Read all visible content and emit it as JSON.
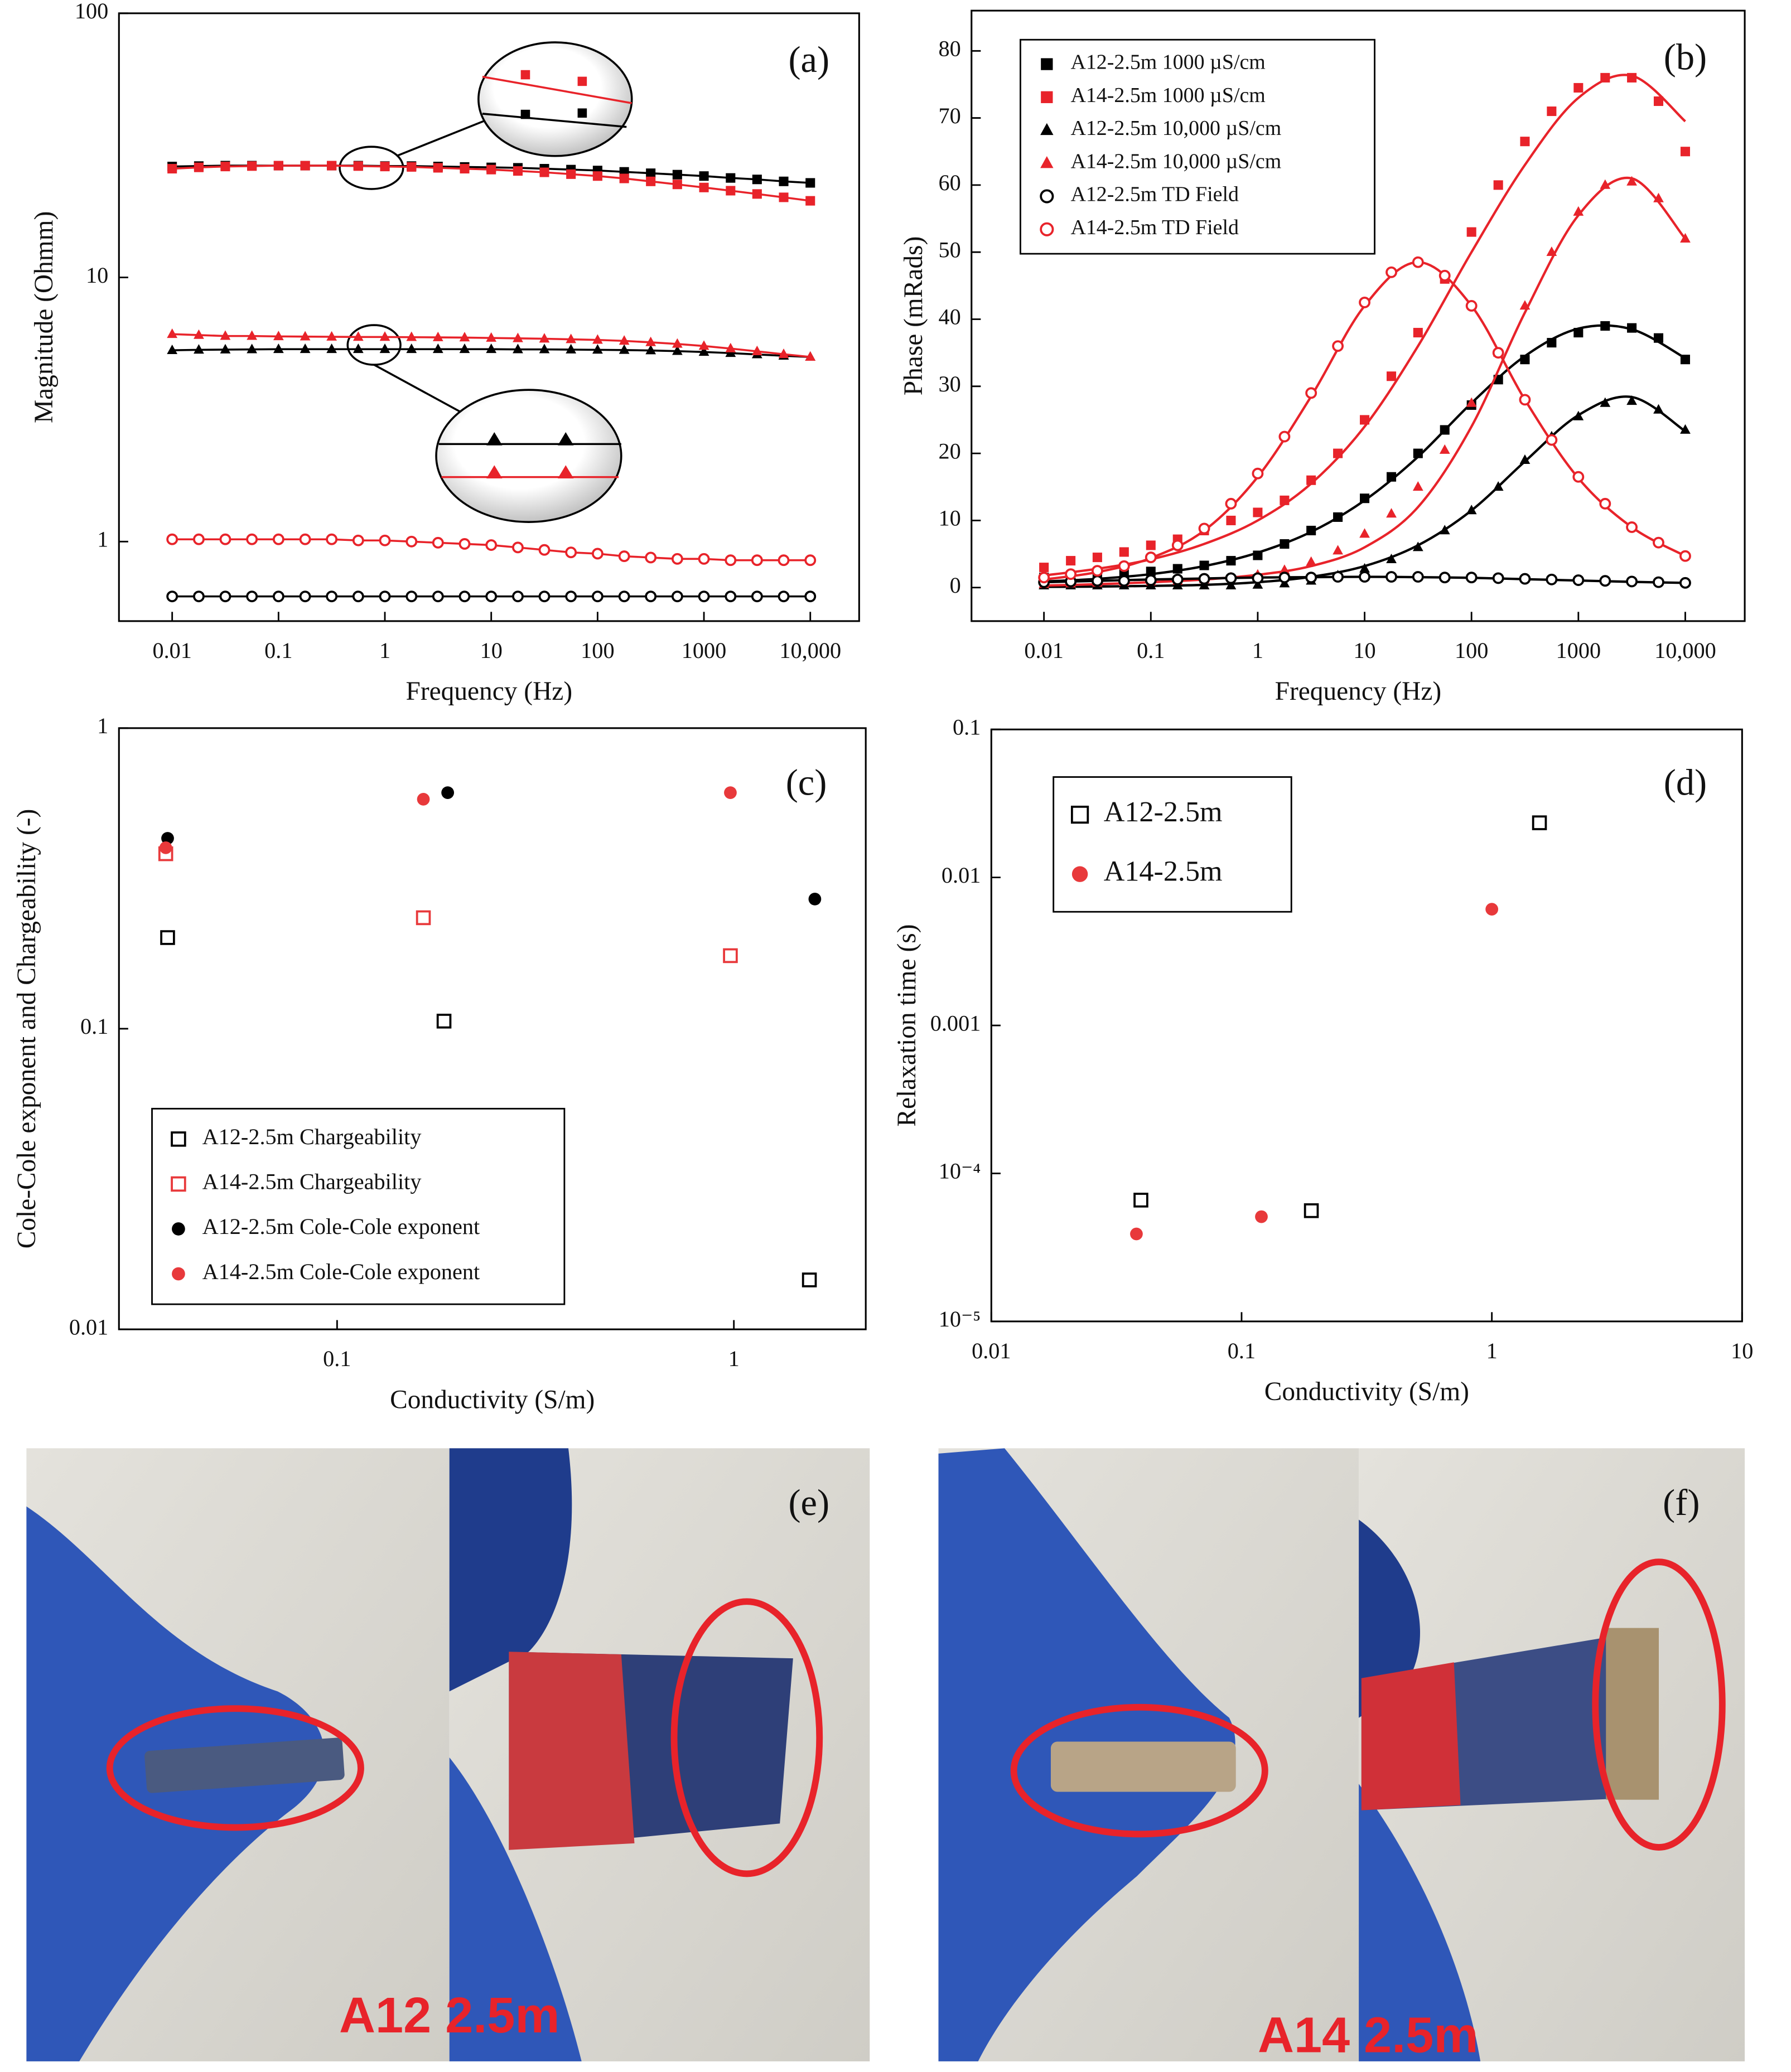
{
  "chart_data": [
    {
      "type": "scatter",
      "panel": "(a)",
      "xlabel": "Frequency (Hz)",
      "ylabel": "Magnitude (Ohmm)",
      "xlog": true,
      "ylog": true,
      "xlim": [
        0.00316,
        28800
      ],
      "ylim": [
        0.5,
        100
      ],
      "xticks": [
        0.01,
        0.1,
        1,
        10,
        100,
        1000,
        {
          "value": 10000,
          "label": "10,000"
        }
      ],
      "yticks": [
        1,
        10,
        100
      ],
      "x": [
        0.01,
        0.0178,
        0.0316,
        0.0562,
        0.1,
        0.178,
        0.316,
        0.562,
        1,
        1.78,
        3.16,
        5.62,
        10,
        17.8,
        31.6,
        56.2,
        100,
        178,
        316,
        562,
        1000,
        1780,
        3160,
        5620,
        10000
      ],
      "series": [
        {
          "color": "#000000",
          "marker": "square",
          "filled": true,
          "line": true,
          "values": [
            26.3,
            26.4,
            26.5,
            26.5,
            26.5,
            26.5,
            26.5,
            26.5,
            26.4,
            26.4,
            26.3,
            26.2,
            26.1,
            26.0,
            25.8,
            25.6,
            25.4,
            25.1,
            24.8,
            24.5,
            24.2,
            23.8,
            23.5,
            23.1,
            22.8
          ]
        },
        {
          "color": "#e8232a",
          "marker": "square",
          "filled": true,
          "line": true,
          "values": [
            25.8,
            26.1,
            26.3,
            26.4,
            26.5,
            26.5,
            26.5,
            26.4,
            26.3,
            26.2,
            26.0,
            25.8,
            25.6,
            25.3,
            25.0,
            24.6,
            24.2,
            23.7,
            23.1,
            22.5,
            21.9,
            21.3,
            20.7,
            20.1,
            19.5
          ]
        },
        {
          "color": "#000000",
          "marker": "triangle",
          "filled": true,
          "line": true,
          "values": [
            5.3,
            5.32,
            5.33,
            5.34,
            5.35,
            5.35,
            5.35,
            5.35,
            5.35,
            5.35,
            5.35,
            5.35,
            5.35,
            5.34,
            5.34,
            5.33,
            5.32,
            5.31,
            5.29,
            5.26,
            5.22,
            5.17,
            5.11,
            5.05,
            5.0
          ]
        },
        {
          "color": "#e8232a",
          "marker": "triangle",
          "filled": true,
          "line": true,
          "values": [
            6.1,
            6.05,
            6.0,
            6.0,
            5.98,
            5.97,
            5.96,
            5.95,
            5.95,
            5.94,
            5.93,
            5.92,
            5.9,
            5.88,
            5.86,
            5.83,
            5.8,
            5.75,
            5.68,
            5.6,
            5.5,
            5.38,
            5.25,
            5.12,
            5.0
          ]
        },
        {
          "color": "#000000",
          "marker": "circle",
          "filled": false,
          "line": true,
          "values": [
            0.62,
            0.62,
            0.62,
            0.62,
            0.62,
            0.62,
            0.62,
            0.62,
            0.62,
            0.62,
            0.62,
            0.62,
            0.62,
            0.62,
            0.62,
            0.62,
            0.62,
            0.62,
            0.62,
            0.62,
            0.62,
            0.62,
            0.62,
            0.62,
            0.62
          ]
        },
        {
          "color": "#e8232a",
          "marker": "circle",
          "filled": false,
          "line": true,
          "values": [
            1.02,
            1.02,
            1.02,
            1.02,
            1.02,
            1.02,
            1.02,
            1.01,
            1.01,
            1.0,
            0.99,
            0.98,
            0.97,
            0.95,
            0.93,
            0.91,
            0.9,
            0.88,
            0.87,
            0.86,
            0.86,
            0.85,
            0.85,
            0.85,
            0.85
          ]
        }
      ]
    },
    {
      "type": "scatter",
      "panel": "(b)",
      "xlabel": "Frequency (Hz)",
      "ylabel": "Phase (mRads)",
      "xlog": true,
      "ylog": false,
      "legend": "upper left",
      "xlim": [
        0.0021,
        36000
      ],
      "ylim": [
        -5,
        86
      ],
      "xticks": [
        0.01,
        0.1,
        1,
        10,
        100,
        1000,
        {
          "value": 10000,
          "label": "10,000"
        }
      ],
      "yticks": [
        0,
        10,
        20,
        30,
        40,
        50,
        60,
        70,
        80
      ],
      "x": [
        0.01,
        0.0178,
        0.0316,
        0.0562,
        0.1,
        0.178,
        0.316,
        0.562,
        1,
        1.78,
        3.16,
        5.62,
        10,
        17.8,
        31.6,
        56.2,
        100,
        178,
        316,
        562,
        1000,
        1780,
        3160,
        5620,
        10000
      ],
      "fit_x": [
        0.01,
        0.0316,
        0.1,
        0.316,
        1,
        3.16,
        10,
        31.6,
        100,
        316,
        1000,
        3160,
        10000
      ],
      "series": [
        {
          "name": "A12-2.5m 1000 µS/cm",
          "color": "#000000",
          "marker": "square",
          "filled": true,
          "values": [
            1.5,
            1.7,
            1.9,
            2.1,
            2.4,
            2.8,
            3.3,
            4.0,
            4.8,
            6.5,
            8.5,
            10.5,
            13.3,
            16.5,
            20,
            23.5,
            27.2,
            31,
            34,
            36.5,
            38,
            39,
            38.7,
            37.2,
            34
          ],
          "fit": [
            0.9,
            1.3,
            2.0,
            3.2,
            5.2,
            8.3,
            13.0,
            19.5,
            27.5,
            34.5,
            38.6,
            38.5,
            34.2
          ]
        },
        {
          "name": "A14-2.5m 1000 µS/cm",
          "color": "#e8232a",
          "marker": "square",
          "filled": true,
          "values": [
            3,
            4,
            4.5,
            5.3,
            6.3,
            7.2,
            8.5,
            10,
            11.2,
            13,
            16,
            20,
            25,
            31.5,
            38,
            46,
            53,
            60,
            66.5,
            71,
            74.5,
            76,
            76,
            72.5,
            65
          ],
          "fit": [
            1.8,
            2.8,
            4.2,
            6.5,
            10,
            15.5,
            24,
            36,
            50,
            63,
            73,
            76.3,
            69.5
          ]
        },
        {
          "name": "A12-2.5m 10,000 µS/cm",
          "color": "#000000",
          "marker": "triangle",
          "filled": true,
          "values": [
            0.3,
            0.3,
            0.3,
            0.3,
            0.3,
            0.3,
            0.3,
            0.3,
            0.4,
            0.6,
            1.0,
            1.8,
            2.8,
            4.2,
            6,
            8.5,
            11.5,
            15,
            19,
            22.5,
            25.5,
            27.5,
            27.8,
            26.5,
            23.5
          ],
          "fit": [
            0.1,
            0.15,
            0.25,
            0.4,
            0.8,
            1.6,
            3.2,
            6.3,
            11.5,
            18.8,
            25.7,
            28.4,
            23.3
          ]
        },
        {
          "name": "A14-2.5m 10,000 µS/cm",
          "color": "#e8232a",
          "marker": "triangle",
          "filled": true,
          "values": [
            0.5,
            0.6,
            0.7,
            0.8,
            0.9,
            1.0,
            1.2,
            1.5,
            1.9,
            2.6,
            3.8,
            5.5,
            8,
            11,
            15,
            20.5,
            27.5,
            35,
            42,
            50,
            56,
            60,
            60.5,
            58,
            52
          ],
          "fit": [
            0.3,
            0.5,
            0.8,
            1.2,
            1.9,
            3.2,
            6,
            12,
            24,
            41,
            55.5,
            61,
            52
          ]
        },
        {
          "name": "A12-2.5m TD Field",
          "color": "#000000",
          "marker": "circle",
          "filled": false,
          "values": [
            0.8,
            0.9,
            1.0,
            1.0,
            1.1,
            1.2,
            1.3,
            1.4,
            1.4,
            1.5,
            1.5,
            1.6,
            1.6,
            1.6,
            1.6,
            1.5,
            1.5,
            1.4,
            1.3,
            1.2,
            1.1,
            1.0,
            0.9,
            0.8,
            0.7
          ],
          "fit": [
            0.8,
            1.0,
            1.2,
            1.35,
            1.5,
            1.55,
            1.6,
            1.55,
            1.45,
            1.25,
            1.05,
            0.85,
            0.7
          ]
        },
        {
          "name": "A14-2.5m TD Field",
          "color": "#e8232a",
          "marker": "circle",
          "filled": false,
          "values": [
            1.5,
            2,
            2.5,
            3.2,
            4.5,
            6.3,
            8.8,
            12.5,
            17,
            22.5,
            29,
            36,
            42.5,
            47,
            48.5,
            46.5,
            42,
            35,
            28,
            22,
            16.5,
            12.5,
            9,
            6.7,
            4.7
          ],
          "fit": [
            1.2,
            2.3,
            4.4,
            8.5,
            16.5,
            28.5,
            42,
            48.5,
            42,
            28,
            16.3,
            9,
            4.7
          ]
        }
      ]
    },
    {
      "type": "scatter",
      "panel": "(c)",
      "xlabel": "Conductivity (S/m)",
      "ylabel": "Cole-Cole exponent and Chargeability (-)",
      "xlog": true,
      "ylog": true,
      "legend": "lower left",
      "xlim": [
        0.0282,
        2.15
      ],
      "ylim": [
        0.01,
        1
      ],
      "xticks": [
        0.1,
        1
      ],
      "yticks": [
        0.01,
        0.1,
        1
      ],
      "series": [
        {
          "name": "A12-2.5m Chargeability",
          "color": "#000000",
          "marker": "square",
          "filled": false,
          "x": [
            0.0374,
            0.186,
            1.55
          ],
          "values": [
            0.201,
            0.106,
            0.0146
          ]
        },
        {
          "name": "A14-2.5m Chargeability",
          "color": "#e8393b",
          "marker": "square",
          "filled": false,
          "x": [
            0.037,
            0.165,
            0.98
          ],
          "values": [
            0.382,
            0.234,
            0.175
          ]
        },
        {
          "name": "A12-2.5m Cole-Cole exponent",
          "color": "#000000",
          "marker": "circle",
          "filled": true,
          "x": [
            0.0374,
            0.19,
            1.6
          ],
          "values": [
            0.43,
            0.61,
            0.27
          ]
        },
        {
          "name": "A14-2.5m Cole-Cole exponent",
          "color": "#e8393b",
          "marker": "circle",
          "filled": true,
          "x": [
            0.037,
            0.165,
            0.98
          ],
          "values": [
            0.4,
            0.58,
            0.61
          ]
        }
      ]
    },
    {
      "type": "scatter",
      "panel": "(d)",
      "xlabel": "Conductivity (S/m)",
      "ylabel": "Relaxation time (s)",
      "xlog": true,
      "ylog": true,
      "legend": "upper left",
      "xlim": [
        0.01,
        10
      ],
      "ylim": [
        1e-05,
        0.1
      ],
      "xticks": [
        0.01,
        0.1,
        1,
        10
      ],
      "yticks": [
        {
          "value": 1e-05,
          "label": "10⁻⁵"
        },
        {
          "value": 0.0001,
          "label": "10⁻⁴"
        },
        0.001,
        0.01,
        0.1
      ],
      "series": [
        {
          "name": "A12-2.5m",
          "color": "#000000",
          "marker": "square",
          "filled": false,
          "x": [
            0.0396,
            0.19,
            1.55
          ],
          "values": [
            6.6e-05,
            5.6e-05,
            0.0234
          ]
        },
        {
          "name": "A14-2.5m",
          "color": "#e8393b",
          "marker": "circle",
          "filled": true,
          "x": [
            0.038,
            0.12,
            1.0
          ],
          "values": [
            3.9e-05,
            5.1e-05,
            0.0061
          ]
        }
      ]
    }
  ],
  "photos": [
    {
      "tag": "(e)",
      "caption": "A12 2.5m"
    },
    {
      "tag": "(f)",
      "caption": "A14 2.5m"
    }
  ]
}
